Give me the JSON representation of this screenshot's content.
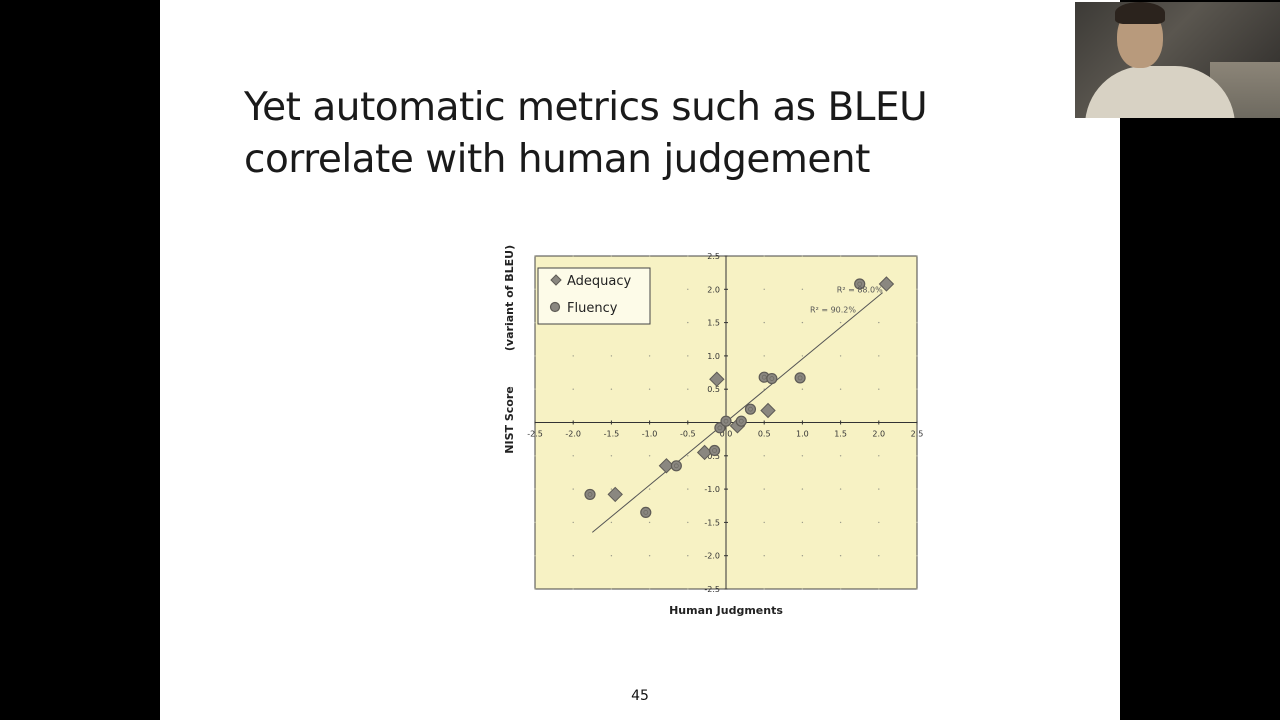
{
  "slide": {
    "title": "Yet automatic metrics such as BLEU correlate with human judgement",
    "page_number": "45"
  },
  "colors": {
    "plot_bg": "#f7f2c4",
    "marker_fill": "#8a8780",
    "marker_stroke": "#5e5b55",
    "axis": "#333333",
    "trendline": "#555555"
  },
  "webcam": {
    "label": ""
  },
  "chart_data": {
    "type": "scatter",
    "xlabel": "Human Judgments",
    "ylabel_main": "NIST Score",
    "ylabel_sub": "(variant of BLEU)",
    "xlim": [
      -2.5,
      2.5
    ],
    "ylim": [
      -2.5,
      2.5
    ],
    "x_ticks": [
      -2.5,
      -2.0,
      -1.5,
      -1.0,
      -0.5,
      0.0,
      0.5,
      1.0,
      1.5,
      2.0,
      2.5
    ],
    "y_ticks": [
      -2.5,
      -2.0,
      -1.5,
      -1.0,
      -0.5,
      0.0,
      0.5,
      1.0,
      1.5,
      2.0,
      2.5
    ],
    "x_tick_labels": [
      "-2.5",
      "-2.0",
      "-1.5",
      "-1.0",
      "-0.5",
      "0.0",
      "0.5",
      "1.0",
      "1.5",
      "2.0",
      "2.5"
    ],
    "y_tick_labels": [
      "-2.5",
      "-2.0",
      "-1.5",
      "-1.0",
      "-0.5",
      "0.0",
      "0.5",
      "1.0",
      "1.5",
      "2.0",
      "2.5"
    ],
    "grid": "dotted",
    "legend_position": "top-left",
    "series": [
      {
        "name": "Adequacy",
        "marker": "diamond",
        "points": [
          {
            "x": -1.45,
            "y": -1.08
          },
          {
            "x": -0.78,
            "y": -0.65
          },
          {
            "x": -0.28,
            "y": -0.45
          },
          {
            "x": -0.12,
            "y": 0.65
          },
          {
            "x": 0.15,
            "y": -0.05
          },
          {
            "x": 0.55,
            "y": 0.18
          },
          {
            "x": 2.1,
            "y": 2.08
          }
        ]
      },
      {
        "name": "Fluency",
        "marker": "circle",
        "points": [
          {
            "x": -1.78,
            "y": -1.08
          },
          {
            "x": -1.05,
            "y": -1.35
          },
          {
            "x": -0.65,
            "y": -0.65
          },
          {
            "x": -0.15,
            "y": -0.42
          },
          {
            "x": -0.08,
            "y": -0.08
          },
          {
            "x": 0.0,
            "y": 0.02
          },
          {
            "x": 0.2,
            "y": 0.02
          },
          {
            "x": 0.32,
            "y": 0.2
          },
          {
            "x": 0.5,
            "y": 0.68
          },
          {
            "x": 0.6,
            "y": 0.66
          },
          {
            "x": 0.97,
            "y": 0.67
          },
          {
            "x": 1.75,
            "y": 2.08
          }
        ]
      }
    ],
    "trendline": {
      "x1": -1.75,
      "y1": -1.65,
      "x2": 2.05,
      "y2": 1.95
    },
    "annotations": [
      {
        "text": "R² = 88.0%",
        "x": 1.45,
        "y": 1.95
      },
      {
        "text": "R² = 90.2%",
        "x": 1.1,
        "y": 1.65
      }
    ]
  }
}
